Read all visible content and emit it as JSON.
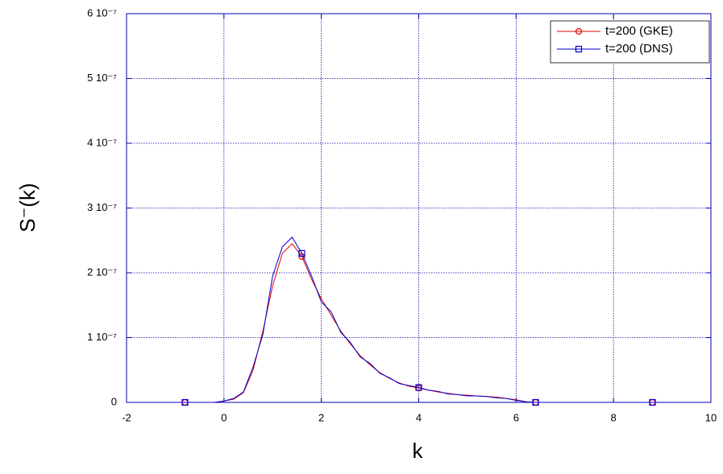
{
  "chart_data": {
    "type": "line",
    "xlabel": "k",
    "ylabel": "S⁻(k)",
    "x": [
      -2,
      -1.8,
      -1.6,
      -1.4,
      -1.2,
      -1,
      -0.8,
      -0.6,
      -0.4,
      -0.2,
      0,
      0.2,
      0.4,
      0.6,
      0.8,
      1,
      1.2,
      1.4,
      1.6,
      1.8,
      2,
      2.2,
      2.4,
      2.6,
      2.8,
      3,
      3.2,
      3.4,
      3.6,
      3.8,
      4,
      4.2,
      4.4,
      4.6,
      4.8,
      5,
      5.2,
      5.4,
      5.6,
      5.8,
      6,
      6.2,
      6.4,
      6.6,
      6.8,
      7,
      7.2,
      7.4,
      7.6,
      7.8,
      8,
      8.2,
      8.4,
      8.6,
      8.8,
      9,
      9.2,
      9.4,
      9.6,
      9.8,
      10
    ],
    "series": [
      {
        "name": "t=200 (GKE)",
        "color": "#e00000",
        "marker": "circle",
        "values": [
          0,
          0,
          0,
          0,
          0,
          0,
          0,
          0,
          0,
          0,
          2e-09,
          5e-09,
          1.5e-08,
          5e-08,
          1.1e-07,
          1.8e-07,
          2.3e-07,
          2.45e-07,
          2.25e-07,
          1.9e-07,
          1.6e-07,
          1.35e-07,
          1.1e-07,
          9e-08,
          7.2e-08,
          5.8e-08,
          4.6e-08,
          3.7e-08,
          3e-08,
          2.5e-08,
          2.2e-08,
          1.9e-08,
          1.6e-08,
          1.4e-08,
          1.2e-08,
          1.1e-08,
          1e-08,
          9e-09,
          8e-09,
          6e-09,
          4e-09,
          1e-09,
          0,
          0,
          0,
          0,
          0,
          0,
          0,
          0,
          0,
          0,
          0,
          0,
          0,
          0,
          0,
          0,
          0,
          0,
          0
        ]
      },
      {
        "name": "t=200 (DNS)",
        "color": "#0000cc",
        "marker": "square",
        "values": [
          0,
          0,
          0,
          0,
          0,
          0,
          0,
          0,
          0,
          0,
          2e-09,
          6e-09,
          1.6e-08,
          5.5e-08,
          1.05e-07,
          1.95e-07,
          2.4e-07,
          2.55e-07,
          2.3e-07,
          1.95e-07,
          1.55e-07,
          1.4e-07,
          1.08e-07,
          9.2e-08,
          7e-08,
          6e-08,
          4.5e-08,
          3.8e-08,
          2.9e-08,
          2.6e-08,
          2.3e-08,
          1.9e-08,
          1.7e-08,
          1.3e-08,
          1.2e-08,
          1e-08,
          1e-08,
          9e-09,
          7e-09,
          6e-09,
          3e-09,
          1e-09,
          0,
          0,
          0,
          0,
          0,
          0,
          0,
          0,
          0,
          0,
          0,
          0,
          0,
          0,
          0,
          0,
          0,
          0,
          0
        ]
      }
    ],
    "marker_offset": 6,
    "marker_every": 12,
    "xlim": [
      -2,
      10
    ],
    "xticks": [
      -2,
      0,
      2,
      4,
      6,
      8,
      10
    ],
    "ylim": [
      0,
      6e-07
    ],
    "yticks": [
      0,
      {
        "value": 1e-07,
        "label": "1 10⁻⁷"
      },
      {
        "value": 2e-07,
        "label": "2 10⁻⁷"
      },
      {
        "value": 3e-07,
        "label": "3 10⁻⁷"
      },
      {
        "value": 4e-07,
        "label": "4 10⁻⁷"
      },
      {
        "value": 5e-07,
        "label": "5 10⁻⁷"
      },
      {
        "value": 6e-07,
        "label": "6 10⁻⁷"
      }
    ],
    "grid": true,
    "legend": "upper right"
  }
}
